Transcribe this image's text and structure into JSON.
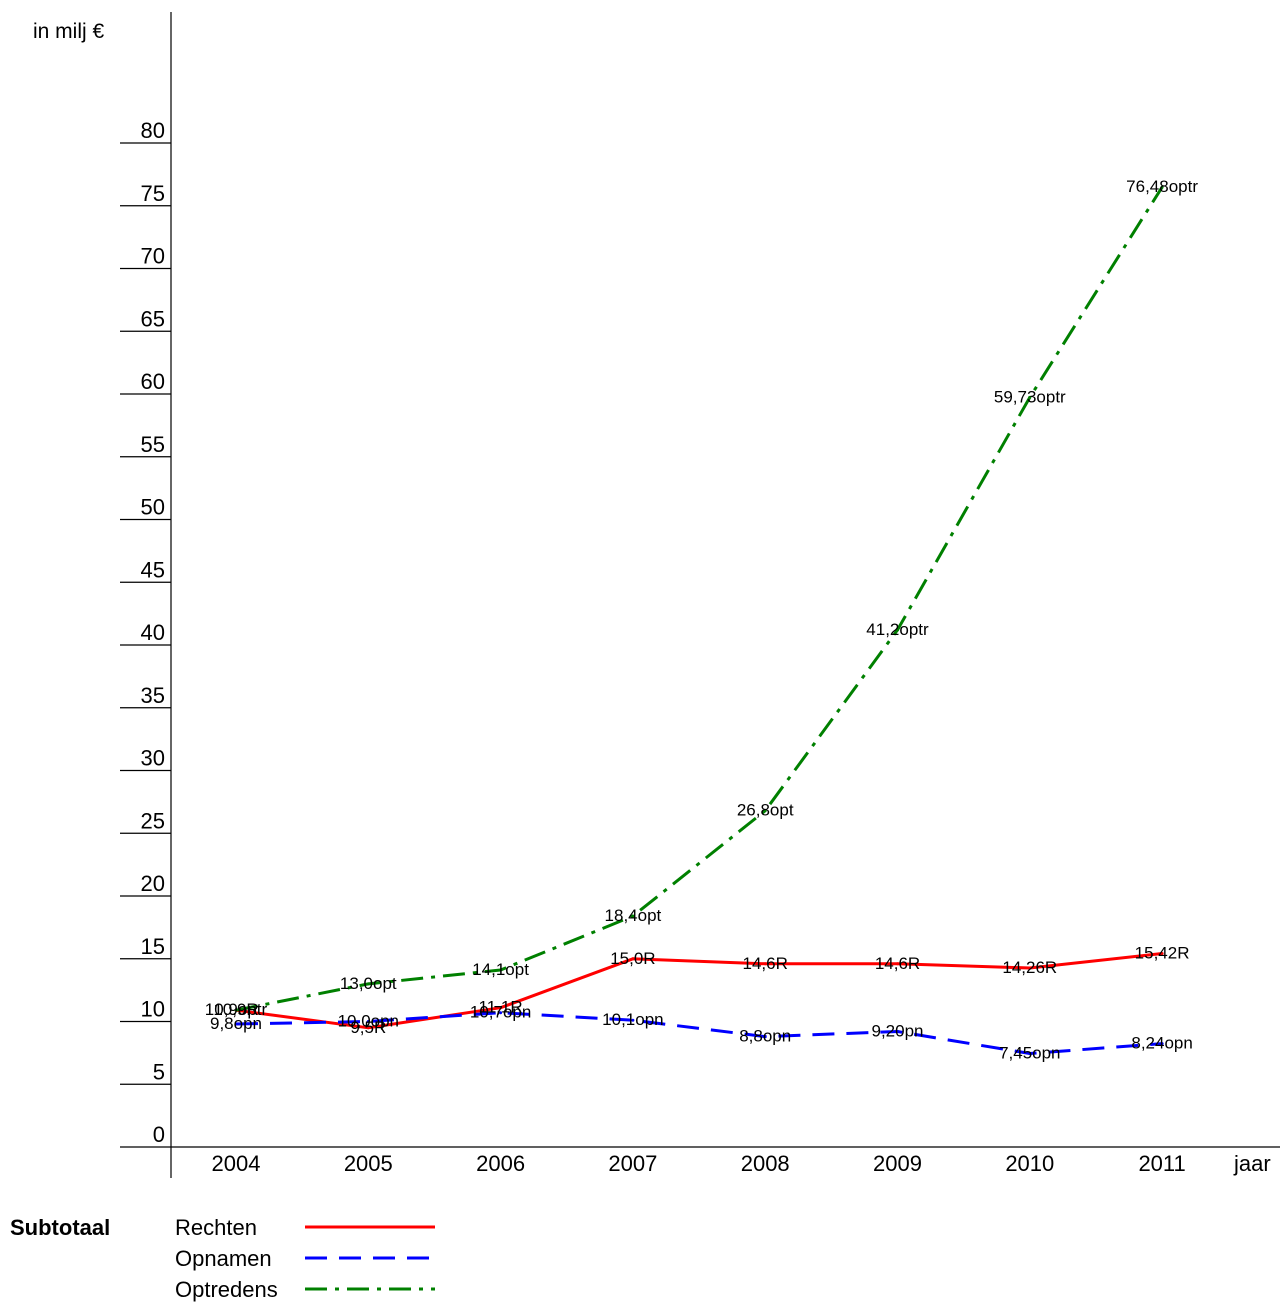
{
  "chart_data": {
    "type": "line",
    "ylabel": "in milj €",
    "xlabel": "jaar",
    "ylim": [
      0,
      80
    ],
    "yticks": [
      0,
      5,
      10,
      15,
      20,
      25,
      30,
      35,
      40,
      45,
      50,
      55,
      60,
      65,
      70,
      75,
      80
    ],
    "categories": [
      "2004",
      "2005",
      "2006",
      "2007",
      "2008",
      "2009",
      "2010",
      "2011"
    ],
    "legend_title": "Subtotaal",
    "series": [
      {
        "name": "Rechten",
        "color": "#ff0000",
        "style": "solid",
        "values": [
          10.9,
          9.5,
          11.1,
          15.0,
          14.6,
          14.6,
          14.26,
          15.42
        ],
        "labels": [
          "10,9R",
          "9,5R",
          "11,1R",
          "15,0R",
          "14,6R",
          "14,6R",
          "14,26R",
          "15,42R"
        ]
      },
      {
        "name": "Opnamen",
        "color": "#0000ff",
        "style": "dashed",
        "values": [
          9.8,
          10.0,
          10.7,
          10.1,
          8.8,
          9.2,
          7.45,
          8.24
        ],
        "labels": [
          "9,8opn",
          "10,0opn",
          "10,7opn",
          "10,1opn",
          "8,8opn",
          "9,20pn",
          "7,45opn",
          "8,24opn"
        ]
      },
      {
        "name": "Optredens",
        "color": "#008000",
        "style": "dashdot",
        "values": [
          10.9,
          13.0,
          14.1,
          18.4,
          26.8,
          41.2,
          59.73,
          76.48
        ],
        "labels": [
          "10,9optr",
          "13,0opt",
          "14,1opt",
          "18,4opt",
          "26,8opt",
          "41,2optr",
          "59,73optr",
          "76,48optr"
        ]
      }
    ]
  }
}
